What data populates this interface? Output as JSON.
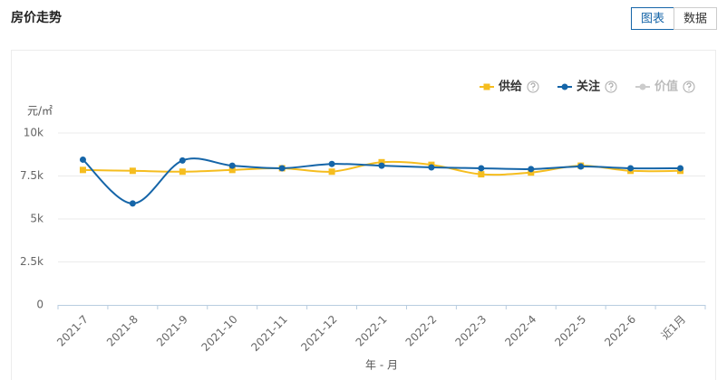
{
  "header": {
    "title": "房价走势",
    "tabs": [
      "图表",
      "数据"
    ]
  },
  "chart_data": {
    "type": "line",
    "y_unit": "元/㎡",
    "xlabel": "年 - 月",
    "categories": [
      "2021-7",
      "2021-8",
      "2021-9",
      "2021-10",
      "2021-11",
      "2021-12",
      "2022-1",
      "2022-2",
      "2022-3",
      "2022-4",
      "2022-5",
      "2022-6",
      "近1月"
    ],
    "series": [
      {
        "name": "供给",
        "color": "#f5bd1f",
        "marker": "square",
        "values": [
          7850,
          7800,
          7750,
          7850,
          7950,
          7750,
          8300,
          8150,
          7600,
          7700,
          8100,
          7800,
          7800
        ]
      },
      {
        "name": "关注",
        "color": "#1565a8",
        "marker": "circle",
        "values": [
          8450,
          5900,
          8400,
          8100,
          7950,
          8200,
          8100,
          8000,
          7950,
          7900,
          8050,
          7950,
          7950
        ]
      },
      {
        "name": "价值",
        "color": "#cccccc",
        "marker": "circle",
        "values": [
          null,
          null,
          null,
          null,
          null,
          null,
          null,
          null,
          null,
          null,
          null,
          null,
          null
        ]
      }
    ],
    "ylim": [
      0,
      10000
    ],
    "yticks": [
      0,
      {
        "value": 2500,
        "label": "2.5k"
      },
      {
        "value": 5000,
        "label": "5k"
      },
      {
        "value": 7500,
        "label": "7.5k"
      },
      {
        "value": 10000,
        "label": "10k"
      }
    ],
    "grid": true,
    "smooth": true,
    "legend": "top-right"
  }
}
